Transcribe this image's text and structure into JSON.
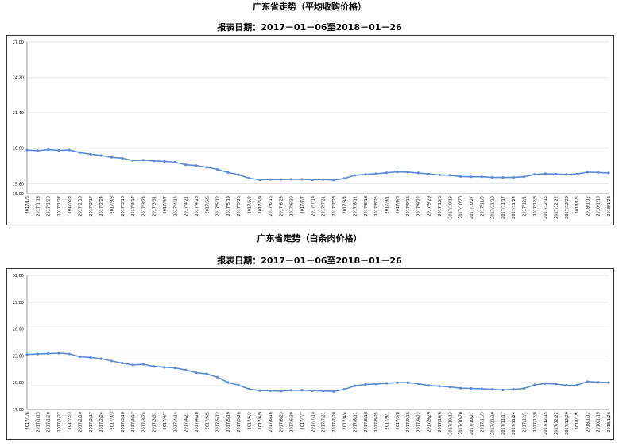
{
  "charts": [
    {
      "title": "广东省走势（平均收购价格）",
      "subtitle": "报表日期：2017－01－06至2018－01－26"
    },
    {
      "title": "广东省走势（白条肉价格）",
      "subtitle": "报表日期：2017－01－06至2018－01－26"
    }
  ],
  "chart_data": [
    {
      "type": "line",
      "title": "广东省走势（平均收购价格）",
      "subtitle": "报表日期：2017－01－06至2018－01－26",
      "ylim": [
        15.0,
        27.0
      ],
      "yticks": [
        "27.00",
        "24.20",
        "21.40",
        "18.60",
        "15.80",
        "15.00"
      ],
      "ytick_values": [
        27.0,
        24.2,
        21.4,
        18.6,
        15.8,
        15.0
      ],
      "grid": true,
      "color": "#5b8bd0",
      "x": [
        "2017/1/6",
        "2017/1/13",
        "2017/1/20",
        "2017/1/27",
        "2017/2/3",
        "2017/2/10",
        "2017/2/17",
        "2017/2/24",
        "2017/3/3",
        "2017/3/10",
        "2017/3/17",
        "2017/3/24",
        "2017/3/31",
        "2017/4/7",
        "2017/4/14",
        "2017/4/21",
        "2017/4/28",
        "2017/5/5",
        "2017/5/12",
        "2017/5/19",
        "2017/5/26",
        "2017/6/2",
        "2017/6/9",
        "2017/6/16",
        "2017/6/23",
        "2017/6/30",
        "2017/7/7",
        "2017/7/14",
        "2017/7/21",
        "2017/7/28",
        "2017/8/4",
        "2017/8/11",
        "2017/8/18",
        "2017/8/25",
        "2017/9/1",
        "2017/9/8",
        "2017/9/15",
        "2017/9/22",
        "2017/9/29",
        "2017/10/6",
        "2017/10/13",
        "2017/10/20",
        "2017/10/27",
        "2017/11/3",
        "2017/11/10",
        "2017/11/17",
        "2017/11/24",
        "2017/12/1",
        "2017/12/8",
        "2017/12/15",
        "2017/12/22",
        "2017/12/29",
        "2018/1/5",
        "2018/1/12",
        "2018/1/19",
        "2018/1/26"
      ],
      "xticks": [
        "2017/1/6",
        "2017/1/13",
        "2017/1/20",
        "2017/1/27",
        "2017/2/3",
        "2017/2/10",
        "2017/2/17",
        "2017/2/24",
        "2017/3/3",
        "2017/3/10",
        "2017/3/17",
        "2017/3/24",
        "2017/3/31",
        "2017/4/7",
        "2017/4/14",
        "2017/4/21",
        "2017/4/28",
        "2017/5/5",
        "2017/5/12",
        "2017/5/19",
        "2017/5/26",
        "2017/6/2",
        "2017/6/9",
        "2017/6/16",
        "2017/6/23",
        "2017/6/30",
        "2017/7/7",
        "2017/7/14",
        "2017/7/21",
        "2017/7/28",
        "2017/8/4",
        "2017/8/11",
        "2017/8/18",
        "2017/8/25",
        "2017/9/1",
        "2017/9/8",
        "2017/9/15",
        "2017/9/22",
        "2017/9/29",
        "2017/10/6",
        "2017/10/13",
        "2017/10/20",
        "2017/10/27",
        "2017/11/3",
        "2017/11/10",
        "2017/11/17",
        "2017/11/24",
        "2017/12/1",
        "2017/12/8",
        "2017/12/15",
        "2017/12/22",
        "2017/12/29",
        "2018/1/5",
        "2018/1/12",
        "2018/1/19",
        "2018/1/26"
      ],
      "values": [
        18.45,
        18.4,
        18.48,
        18.42,
        18.45,
        18.25,
        18.12,
        18.02,
        17.88,
        17.8,
        17.62,
        17.65,
        17.58,
        17.55,
        17.48,
        17.28,
        17.22,
        17.08,
        16.92,
        16.68,
        16.5,
        16.22,
        16.1,
        16.12,
        16.12,
        16.14,
        16.14,
        16.1,
        16.12,
        16.08,
        16.2,
        16.45,
        16.52,
        16.58,
        16.65,
        16.72,
        16.7,
        16.64,
        16.55,
        16.48,
        16.46,
        16.36,
        16.34,
        16.34,
        16.28,
        16.28,
        16.28,
        16.34,
        16.52,
        16.58,
        16.55,
        16.52,
        16.55,
        16.7,
        16.68,
        16.64
      ]
    },
    {
      "type": "line",
      "title": "广东省走势（白条肉价格）",
      "subtitle": "报表日期：2017－01－06至2018－01－26",
      "ylim": [
        17.0,
        32.0
      ],
      "yticks": [
        "32.00",
        "29.00",
        "26.00",
        "23.00",
        "20.00",
        "17.00"
      ],
      "ytick_values": [
        32.0,
        29.0,
        26.0,
        23.0,
        20.0,
        17.0
      ],
      "grid": true,
      "color": "#5b8bd0",
      "x": [
        "2017/1/6",
        "2017/1/13",
        "2017/1/20",
        "2017/1/27",
        "2017/2/3",
        "2017/2/10",
        "2017/2/17",
        "2017/2/24",
        "2017/3/3",
        "2017/3/10",
        "2017/3/17",
        "2017/3/24",
        "2017/3/31",
        "2017/4/7",
        "2017/4/14",
        "2017/4/21",
        "2017/4/28",
        "2017/5/5",
        "2017/5/12",
        "2017/5/19",
        "2017/5/26",
        "2017/6/2",
        "2017/6/9",
        "2017/6/16",
        "2017/6/23",
        "2017/6/30",
        "2017/7/7",
        "2017/7/14",
        "2017/7/21",
        "2017/7/28",
        "2017/8/4",
        "2017/8/11",
        "2017/8/18",
        "2017/8/25",
        "2017/9/1",
        "2017/9/8",
        "2017/9/15",
        "2017/9/22",
        "2017/9/29",
        "2017/10/6",
        "2017/10/13",
        "2017/10/20",
        "2017/10/27",
        "2017/11/3",
        "2017/11/10",
        "2017/11/17",
        "2017/11/24",
        "2017/12/1",
        "2017/12/8",
        "2017/12/15",
        "2017/12/22",
        "2017/12/29",
        "2018/1/5",
        "2018/1/12",
        "2018/1/19",
        "2018/1/26"
      ],
      "xticks": [
        "2017/1/6",
        "2017/1/13",
        "2017/1/20",
        "2017/1/27",
        "2017/2/3",
        "2017/2/10",
        "2017/2/17",
        "2017/2/24",
        "2017/3/3",
        "2017/3/10",
        "2017/3/17",
        "2017/3/24",
        "2017/3/31",
        "2017/4/7",
        "2017/4/14",
        "2017/4/21",
        "2017/4/28",
        "2017/5/5",
        "2017/5/12",
        "2017/5/19",
        "2017/5/26",
        "2017/6/2",
        "2017/6/9",
        "2017/6/16",
        "2017/6/23",
        "2017/6/30",
        "2017/7/7",
        "2017/7/14",
        "2017/7/21",
        "2017/7/28",
        "2017/8/4",
        "2017/8/11",
        "2017/8/18",
        "2017/8/25",
        "2017/9/1",
        "2017/9/8",
        "2017/9/15",
        "2017/9/22",
        "2017/9/29",
        "2017/10/6",
        "2017/10/13",
        "2017/10/20",
        "2017/10/27",
        "2017/11/3",
        "2017/11/10",
        "2017/11/17",
        "2017/11/24",
        "2017/12/1",
        "2017/12/8",
        "2017/12/15",
        "2017/12/22",
        "2017/12/29",
        "2018/1/5",
        "2018/1/12",
        "2018/1/19",
        "2018/1/26"
      ],
      "values": [
        23.15,
        23.2,
        23.25,
        23.3,
        23.22,
        22.9,
        22.82,
        22.68,
        22.42,
        22.18,
        21.98,
        22.05,
        21.82,
        21.72,
        21.65,
        21.42,
        21.12,
        20.98,
        20.62,
        20.02,
        19.72,
        19.28,
        19.12,
        19.1,
        19.05,
        19.15,
        19.15,
        19.1,
        19.08,
        19.02,
        19.25,
        19.65,
        19.8,
        19.85,
        19.92,
        20.0,
        20.0,
        19.88,
        19.68,
        19.6,
        19.52,
        19.38,
        19.35,
        19.32,
        19.25,
        19.18,
        19.25,
        19.35,
        19.75,
        19.9,
        19.85,
        19.7,
        19.72,
        20.12,
        20.05,
        20.02
      ]
    }
  ]
}
